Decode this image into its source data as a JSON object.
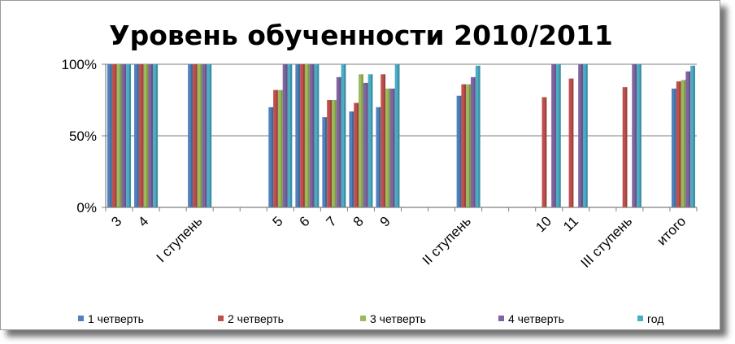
{
  "chart_data": {
    "type": "bar",
    "title": "Уровень обученности 2010/2011",
    "xlabel": "",
    "ylabel": "",
    "ylim": [
      0,
      100
    ],
    "yticks": [
      0,
      50,
      100
    ],
    "ytick_labels": [
      "0%",
      "50%",
      "100%"
    ],
    "grid": true,
    "legend_position": "bottom",
    "categories": [
      "3",
      "4",
      "",
      "I ступень",
      "",
      "",
      "5",
      "6",
      "7",
      "8",
      "9",
      "",
      "",
      "II ступень",
      "",
      "",
      "10",
      "11",
      "",
      "III ступень",
      "",
      "итого"
    ],
    "series": [
      {
        "name": "1 четверть",
        "color": "#4F81BD",
        "values": [
          100,
          100,
          null,
          100,
          null,
          null,
          70,
          100,
          63,
          67,
          70,
          null,
          null,
          78,
          null,
          null,
          null,
          null,
          null,
          null,
          null,
          83
        ]
      },
      {
        "name": "2 четверть",
        "color": "#C0504D",
        "values": [
          100,
          100,
          null,
          100,
          null,
          null,
          82,
          100,
          75,
          73,
          93,
          null,
          null,
          86,
          null,
          null,
          77,
          90,
          null,
          84,
          null,
          88
        ]
      },
      {
        "name": "3 четверть",
        "color": "#9BBB59",
        "values": [
          100,
          100,
          null,
          100,
          null,
          null,
          82,
          100,
          75,
          93,
          83,
          null,
          null,
          86,
          null,
          null,
          null,
          null,
          null,
          null,
          null,
          89
        ]
      },
      {
        "name": "4 четверть",
        "color": "#8064A2",
        "values": [
          100,
          100,
          null,
          100,
          null,
          null,
          100,
          100,
          91,
          87,
          83,
          null,
          null,
          91,
          null,
          null,
          100,
          100,
          null,
          100,
          null,
          95
        ]
      },
      {
        "name": "год",
        "color": "#4BACC6",
        "values": [
          100,
          100,
          null,
          100,
          null,
          null,
          100,
          100,
          100,
          93,
          100,
          null,
          null,
          99,
          null,
          null,
          100,
          100,
          null,
          100,
          null,
          99
        ]
      }
    ]
  }
}
